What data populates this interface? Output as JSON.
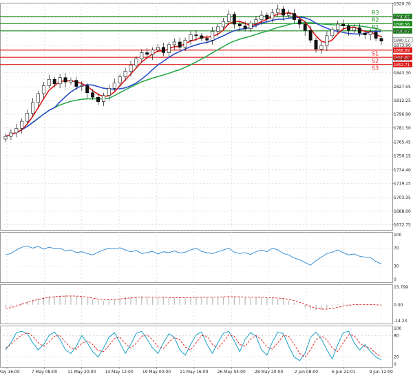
{
  "chart_data": {
    "type": "candlestick",
    "timeframe_note": "",
    "x_tick_labels": [
      "6 May 16:00",
      "7 May 08:00",
      "11 May 20:00",
      "14 May 12:00",
      "19 May 00:00",
      "21 May 16:00",
      "26 May 04:00",
      "28 May 20:00",
      "2 Jun 08:00",
      "6 Jun 22:01",
      "9 Jun 12:00"
    ],
    "price": {
      "ylim": [
        1667,
        1922
      ],
      "y_ticks": [
        "1920.70",
        "1905.33",
        "1889.95",
        "1873.90",
        "1858.55",
        "1843.30",
        "1827.55",
        "1812.25",
        "1796.90",
        "1781.50",
        "1765.45",
        "1750.15",
        "1734.40",
        "1719.15",
        "1703.35",
        "1688.00",
        "1672.75"
      ],
      "tick_values": [
        1920.7,
        1905.33,
        1889.95,
        1873.9,
        1858.55,
        1843.3,
        1827.55,
        1812.25,
        1796.9,
        1781.5,
        1765.45,
        1750.15,
        1734.4,
        1719.15,
        1703.35,
        1688.0,
        1672.75
      ],
      "current_price": {
        "label": "1880.12",
        "value": 1880.12
      },
      "levels": [
        {
          "name": "R3",
          "label": "1906.65",
          "value": 1906.65,
          "color": "#1e8c1e"
        },
        {
          "name": "R2",
          "label": "1898.56",
          "value": 1898.56,
          "color": "#1e8c1e"
        },
        {
          "name": "R1",
          "label": "1890.47",
          "value": 1890.47,
          "color": "#1e8c1e"
        },
        {
          "name": "S1",
          "label": "1868.89",
          "value": 1868.89,
          "color": "#e01818"
        },
        {
          "name": "S2",
          "label": "1860.80",
          "value": 1860.8,
          "color": "#e01818"
        },
        {
          "name": "S3",
          "label": "1852.71",
          "value": 1852.71,
          "color": "#e01818"
        }
      ],
      "close_series": [
        1772,
        1776,
        1781,
        1789,
        1798,
        1810,
        1820,
        1829,
        1836,
        1831,
        1838,
        1833,
        1835,
        1828,
        1829,
        1821,
        1816,
        1811,
        1818,
        1826,
        1832,
        1839,
        1845,
        1852,
        1859,
        1866,
        1864,
        1869,
        1872,
        1866,
        1875,
        1878,
        1872,
        1880,
        1886,
        1885,
        1882,
        1880,
        1890,
        1895,
        1901,
        1909,
        1898,
        1896,
        1893,
        1899,
        1903,
        1908,
        1904,
        1911,
        1915,
        1908,
        1910,
        1903,
        1898,
        1891,
        1880,
        1870,
        1874,
        1885,
        1892,
        1898,
        1896,
        1891,
        1894,
        1888,
        1886,
        1889,
        1882,
        1879
      ],
      "ma_fast_color": "#e01818",
      "ma_mid_color": "#2b4fc9",
      "ma_slow_color": "#2aa84a"
    },
    "rsi": {
      "ylim": [
        0,
        100
      ],
      "y_ticks": [
        "100",
        "70",
        "30",
        "0"
      ],
      "tick_values": [
        100,
        70,
        30,
        0
      ],
      "values": [
        55,
        58,
        66,
        72,
        75,
        70,
        74,
        68,
        72,
        69,
        70,
        64,
        66,
        60,
        62,
        58,
        55,
        61,
        66,
        70,
        68,
        71,
        66,
        62,
        65,
        58,
        60,
        63,
        57,
        62,
        60,
        64,
        59,
        61,
        66,
        70,
        63,
        60,
        58,
        62,
        66,
        70,
        61,
        58,
        60,
        56,
        62,
        66,
        62,
        70,
        66,
        58,
        55,
        48,
        44,
        38,
        32,
        42,
        50,
        58,
        61,
        66,
        60,
        55,
        57,
        52,
        50,
        49,
        40,
        35
      ],
      "color": "#3a8fd6"
    },
    "macd": {
      "ylim": [
        -14.23,
        15.799
      ],
      "y_ticks": [
        "15.799",
        "0.00",
        "-14.23"
      ],
      "tick_values": [
        15.799,
        0,
        -14.23
      ],
      "histogram": [
        -2,
        -1.5,
        0.5,
        2,
        3.5,
        5,
        6,
        7,
        7.5,
        8,
        8.3,
        8.4,
        8.2,
        7.8,
        7,
        6,
        5,
        4,
        3.5,
        4,
        5,
        6,
        6.8,
        7.2,
        7.5,
        7.6,
        7.3,
        7,
        6.5,
        6.2,
        6,
        6.1,
        6.3,
        6.5,
        6.6,
        6.7,
        6.8,
        6.9,
        7,
        7.2,
        7.3,
        7.2,
        7.1,
        6.9,
        6.8,
        6.6,
        6.5,
        6.3,
        6.1,
        5.8,
        5.4,
        4.8,
        4,
        2,
        -0.5,
        -2.5,
        -4.2,
        -5,
        -4.5,
        -3,
        -1,
        0.5,
        1.2,
        1,
        0.8,
        0.4,
        0.2,
        0,
        -0.3,
        -0.6
      ],
      "signal": [
        -3,
        -2.5,
        -1.2,
        0.5,
        2,
        3.5,
        4.8,
        5.8,
        6.6,
        7.2,
        7.6,
        7.8,
        7.9,
        7.8,
        7.4,
        6.8,
        6,
        5.2,
        4.6,
        4.4,
        4.6,
        5.1,
        5.7,
        6.2,
        6.6,
        6.9,
        7,
        7,
        6.8,
        6.6,
        6.4,
        6.3,
        6.3,
        6.4,
        6.5,
        6.6,
        6.7,
        6.8,
        6.9,
        7,
        7.1,
        7.2,
        7.2,
        7.1,
        7,
        6.9,
        6.8,
        6.7,
        6.5,
        6.3,
        6,
        5.6,
        5,
        3.8,
        2.2,
        0.5,
        -1.5,
        -3,
        -3.8,
        -3.8,
        -3.2,
        -2.2,
        -1.2,
        -0.4,
        0.1,
        0.3,
        0.3,
        0.2,
        0,
        -0.2
      ],
      "hist_color": "#bdbdbd",
      "signal_color": "#e01818"
    },
    "stochastic": {
      "ylim": [
        0,
        100
      ],
      "y_ticks": [
        "100",
        "80",
        "20",
        "0"
      ],
      "tick_values": [
        100,
        80,
        20,
        0
      ],
      "k": [
        40,
        60,
        88,
        92,
        85,
        60,
        40,
        55,
        80,
        90,
        70,
        40,
        30,
        50,
        80,
        60,
        35,
        20,
        45,
        75,
        88,
        60,
        30,
        55,
        86,
        92,
        70,
        45,
        30,
        60,
        85,
        75,
        40,
        25,
        55,
        82,
        90,
        55,
        30,
        60,
        86,
        92,
        65,
        35,
        70,
        88,
        78,
        40,
        25,
        62,
        90,
        85,
        50,
        20,
        10,
        30,
        75,
        90,
        70,
        40,
        15,
        55,
        88,
        92,
        60,
        40,
        55,
        35,
        20,
        12
      ],
      "d": [
        45,
        55,
        70,
        82,
        88,
        78,
        60,
        50,
        62,
        78,
        80,
        62,
        45,
        42,
        58,
        65,
        55,
        38,
        35,
        52,
        72,
        75,
        58,
        45,
        58,
        78,
        82,
        68,
        48,
        44,
        62,
        75,
        68,
        48,
        40,
        60,
        80,
        78,
        55,
        44,
        62,
        82,
        78,
        55,
        50,
        70,
        80,
        68,
        48,
        42,
        60,
        80,
        78,
        55,
        30,
        20,
        40,
        68,
        78,
        68,
        45,
        35,
        60,
        82,
        80,
        60,
        48,
        45,
        30,
        20
      ],
      "k_color": "#1aa0c8",
      "d_color": "#e01818"
    }
  }
}
